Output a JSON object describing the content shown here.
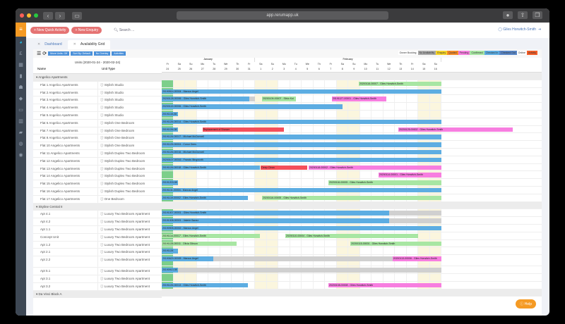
{
  "browser": {
    "url": "app.rerumapp.uk"
  },
  "topbar": {
    "new_quick_activity": "+ New Quick Activity",
    "new_enquiry": "+ New Enquiry",
    "search_placeholder": "Search ...",
    "user_name": "Giles Horwitch-Smith"
  },
  "tabs": [
    {
      "label": "Dashboard"
    },
    {
      "label": "Availability Grid"
    }
  ],
  "toolbar": {
    "move_units": "Move Units: Off",
    "sort_by": "Sort By: Default",
    "overlay": "No Overlay",
    "activities": "Activities"
  },
  "legend": [
    {
      "label": "Owner Booking",
      "color": "#ffffff"
    },
    {
      "label": "No Availability",
      "color": "#aaaaaa"
    },
    {
      "label": "Enquiry",
      "color": "#f5d327"
    },
    {
      "label": "Quoted",
      "color": "#f58b27"
    },
    {
      "label": "Pending",
      "color": "#f77ee0"
    },
    {
      "label": "Confirmed",
      "color": "#a8e6a3"
    },
    {
      "label": "Checked In",
      "color": "#5dade2"
    },
    {
      "label": "Checked Out",
      "color": "#5a87c7"
    },
    {
      "label": "Online",
      "color": "#ffffff"
    },
    {
      "label": "Activity",
      "color": "#f45d27"
    }
  ],
  "grid": {
    "range_label": "Units (2020-01-24 - 2020-02-24)",
    "col_name": "Name",
    "col_type": "Unit Type",
    "months": [
      {
        "label": "January",
        "span": 8
      },
      {
        "label": "February",
        "span": 16
      }
    ],
    "weekdays": [
      "Fr",
      "Sa",
      "Su",
      "Mo",
      "Tu",
      "We",
      "Th",
      "Fr",
      "Sa",
      "Su",
      "Mo",
      "Tu",
      "We",
      "Th",
      "Fr",
      "Sa",
      "Su",
      "Mo",
      "Tu",
      "We",
      "Th",
      "Fr",
      "Sa",
      "Su"
    ],
    "dates": [
      "24",
      "25",
      "26",
      "27",
      "28",
      "29",
      "30",
      "31",
      "1",
      "2",
      "3",
      "4",
      "5",
      "6",
      "7",
      "8",
      "9",
      "10",
      "11",
      "12",
      "13",
      "14",
      "15",
      "16"
    ],
    "groups": [
      {
        "name": "Angelico Apartments",
        "units": [
          {
            "name": "Flat 1 Angelico Apartments",
            "type": "Stylish Studio"
          },
          {
            "name": "Flat 2 Angelico Apartments",
            "type": "Stylish Studio"
          },
          {
            "name": "Flat 3 Angelico Apartments",
            "type": "Stylish Studio"
          },
          {
            "name": "Flat 4 Angelico Apartments",
            "type": "Stylish Studio"
          },
          {
            "name": "Flat 5 Angelico Apartments",
            "type": "Stylish Studio"
          },
          {
            "name": "Flat 6 Angelico Apartments",
            "type": "Stylish One Bedroom"
          },
          {
            "name": "Flat 7 Angelico Apartments",
            "type": "Stylish One Bedroom"
          },
          {
            "name": "Flat 8 Angelico Apartments",
            "type": "Stylish One Bedroom"
          },
          {
            "name": "Flat 10 Angelico Apartments",
            "type": "Stylish One Bedroom"
          },
          {
            "name": "Flat 11 Angelico Apartments",
            "type": "Stylish Duplex Two Bedroom"
          },
          {
            "name": "Flat 12 Angelico Apartments",
            "type": "Stylish Duplex Two Bedroom"
          },
          {
            "name": "Flat 13 Angelico Apartments",
            "type": "Stylish Duplex Two Bedroom"
          },
          {
            "name": "Flat 14 Angelico Apartments",
            "type": "Stylish Duplex Two Bedroom"
          },
          {
            "name": "Flat 15 Angelico Apartments",
            "type": "Stylish Duplex Two Bedroom"
          },
          {
            "name": "Flat 16 Angelico Apartments",
            "type": "Stylish Duplex Two Bedroom"
          },
          {
            "name": "Flat 17 Angelico Apartments",
            "type": "One Bedroom"
          }
        ]
      },
      {
        "name": "Skyline Central II",
        "units": [
          {
            "name": "Apt 4.1",
            "type": "Luxury Two Bedroom Apartment"
          },
          {
            "name": "Apt 4.2",
            "type": "Luxury Two Bedroom Apartment"
          },
          {
            "name": "Apt 1.1",
            "type": "Luxury Two Bedroom Apartment"
          },
          {
            "name": "Concept Unit",
            "type": "Luxury Two Bedroom Apartment"
          },
          {
            "name": "Apt 1.2",
            "type": "Luxury Two Bedroom Apartment"
          },
          {
            "name": "Apt 2.1",
            "type": "Luxury Two Bedroom Apartment"
          },
          {
            "name": "Apt 2.2",
            "type": "Luxury Two Bedroom Apartment"
          },
          {
            "name": "Apt 5.1",
            "type": "Luxury Two Bedroom Apartment"
          },
          {
            "name": "Apt 3.1",
            "type": "Luxury Two Bedroom Apartment"
          },
          {
            "name": "Apt 3.2",
            "type": "Luxury Two Bedroom Apartment"
          }
        ]
      },
      {
        "name": "Da Vinci Block A",
        "units": []
      }
    ],
    "bookings": [
      {
        "row": 0,
        "start": 16.9,
        "len": 7.1,
        "color": "green",
        "label": "20200116-00007 - Giles Horwitch-Smith"
      },
      {
        "row": 1,
        "start": 0,
        "len": 24,
        "color": "blue",
        "label": "20190514-00004 - Marcus Angel"
      },
      {
        "row": 2,
        "start": 0,
        "len": 7.5,
        "color": "blue",
        "label": "20200128-00006 - Giles Horwitch-Smith"
      },
      {
        "row": 2,
        "start": 7.5,
        "len": 0.5,
        "color": "grey",
        "label": ""
      },
      {
        "row": 2,
        "start": 8.6,
        "len": 2.9,
        "color": "green",
        "label": "20200109-00007 - Silvio Koi"
      },
      {
        "row": 2,
        "start": 14.6,
        "len": 4.7,
        "color": "pink",
        "label": "20191127-00001 - Giles Horwitch-Smith"
      },
      {
        "row": 3,
        "start": 0,
        "len": 15.5,
        "color": "blue",
        "label": "20200119-00006 - Giles Horwitch-Smith"
      },
      {
        "row": 4,
        "start": 0,
        "len": 1.4,
        "color": "blue",
        "label": "20191115-08"
      },
      {
        "row": 5,
        "start": 0,
        "len": 24,
        "color": "blue",
        "label": "20191126-00014 - Giles Horwitch-Smith"
      },
      {
        "row": 6,
        "start": 0,
        "len": 1.4,
        "color": "blue",
        "label": "20191126-08"
      },
      {
        "row": 6,
        "start": 3.5,
        "len": 7,
        "color": "red",
        "label": "Replacement of Shower"
      },
      {
        "row": 6,
        "start": 20.3,
        "len": 9.8,
        "color": "pink",
        "label": "20200125-00002 - Giles Horwitch-Smith"
      },
      {
        "row": 7,
        "start": 0,
        "len": 24,
        "color": "blue",
        "label": "20191126-00017 - Michael McDonnell"
      },
      {
        "row": 8,
        "start": 0,
        "len": 24,
        "color": "blue",
        "label": "20191125-00004 - Conor Dees"
      },
      {
        "row": 9,
        "start": 0,
        "len": 24,
        "color": "blue",
        "label": "20191126-00016 - Michael McDonnell"
      },
      {
        "row": 10,
        "start": 0,
        "len": 24,
        "color": "blue",
        "label": "20200107-00016 - Francis Illingworth"
      },
      {
        "row": 11,
        "start": 0,
        "len": 8.4,
        "color": "blue",
        "label": "20191126-00018 - Giles Horwitch-Smith"
      },
      {
        "row": 11,
        "start": 8.5,
        "len": 4,
        "color": "red",
        "label": "Deep Clean"
      },
      {
        "row": 11,
        "start": 12.6,
        "len": 11.4,
        "color": "pink",
        "label": "20200118-00002 - Giles Horwitch-Smith"
      },
      {
        "row": 12,
        "start": 18.6,
        "len": 5.4,
        "color": "pink",
        "label": "20200114-00001 - Giles Horwitch-Smith"
      },
      {
        "row": 13,
        "start": 0,
        "len": 1.4,
        "color": "blue",
        "label": "20191203-08"
      },
      {
        "row": 13,
        "start": 14.3,
        "len": 9.7,
        "color": "green",
        "label": "20200116-00005 - Giles Horwitch-Smith"
      },
      {
        "row": 14,
        "start": 0,
        "len": 24,
        "color": "blue",
        "label": "20191111-00004 - Marcus Angel"
      },
      {
        "row": 15,
        "start": 0,
        "len": 7.4,
        "color": "blue",
        "label": "20191119-00002 - Giles Horwitch-Smith"
      },
      {
        "row": 15,
        "start": 8.6,
        "len": 15.4,
        "color": "green",
        "label": "20200116-00005 - Giles Horwitch-Smith"
      },
      {
        "row": 16,
        "start": 0,
        "len": 19.5,
        "color": "blue",
        "label": "20191007-00001 - Giles Horwitch-Smith"
      },
      {
        "row": 16,
        "start": 19.5,
        "len": 4.5,
        "color": "grey",
        "label": ""
      },
      {
        "row": 17,
        "start": 0,
        "len": 19.5,
        "color": "blue",
        "label": "20191008-00001 - Valerie Banez"
      },
      {
        "row": 17,
        "start": 19.5,
        "len": 4.5,
        "color": "grey",
        "label": ""
      },
      {
        "row": 18,
        "start": 0,
        "len": 24,
        "color": "blue",
        "label": "20190905-00002 - Marcus Angel"
      },
      {
        "row": 19,
        "start": 0,
        "len": 8.4,
        "color": "green",
        "label": "20191114-00017 - Giles Horwitch-Smith"
      },
      {
        "row": 19,
        "start": 10.6,
        "len": 11.4,
        "color": "green",
        "label": "20200110-00004 - Giles Horwitch-Smith"
      },
      {
        "row": 20,
        "start": 0,
        "len": 6.4,
        "color": "green",
        "label": "20191128-00011 - Olivia Gibson"
      },
      {
        "row": 20,
        "start": 16.2,
        "len": 7.8,
        "color": "green",
        "label": "20200115-00001 - Giles Horwitch-Smith"
      },
      {
        "row": 21,
        "start": 0,
        "len": 1.4,
        "color": "blue",
        "label": "20191128"
      },
      {
        "row": 22,
        "start": 0,
        "len": 4.4,
        "color": "blue",
        "label": "20190629-00005 - Marcus Angel"
      },
      {
        "row": 22,
        "start": 4.4,
        "len": 19.6,
        "color": "grey",
        "label": ""
      },
      {
        "row": 22,
        "start": 19.8,
        "len": 4.2,
        "color": "pink",
        "label": "20200113-00006 - Giles Horwitch-Smith"
      },
      {
        "row": 23,
        "start": 0,
        "len": 1.4,
        "color": "blue",
        "label": "20190913-08"
      },
      {
        "row": 23,
        "start": 1.4,
        "len": 22.6,
        "color": "grey",
        "label": ""
      },
      {
        "row": 25,
        "start": 0,
        "len": 7.4,
        "color": "blue",
        "label": "20191126-00013 - Giles Horwitch-Smith"
      },
      {
        "row": 25,
        "start": 14.3,
        "len": 9.7,
        "color": "pink",
        "label": "20200108-00008 - Giles Horwitch-Smith"
      },
      {
        "row": 27,
        "start": 0,
        "len": 7.4,
        "color": "blue",
        "label": "20191008-00015 - Giles Horwitch-Smith"
      }
    ]
  },
  "help_label": "Help"
}
